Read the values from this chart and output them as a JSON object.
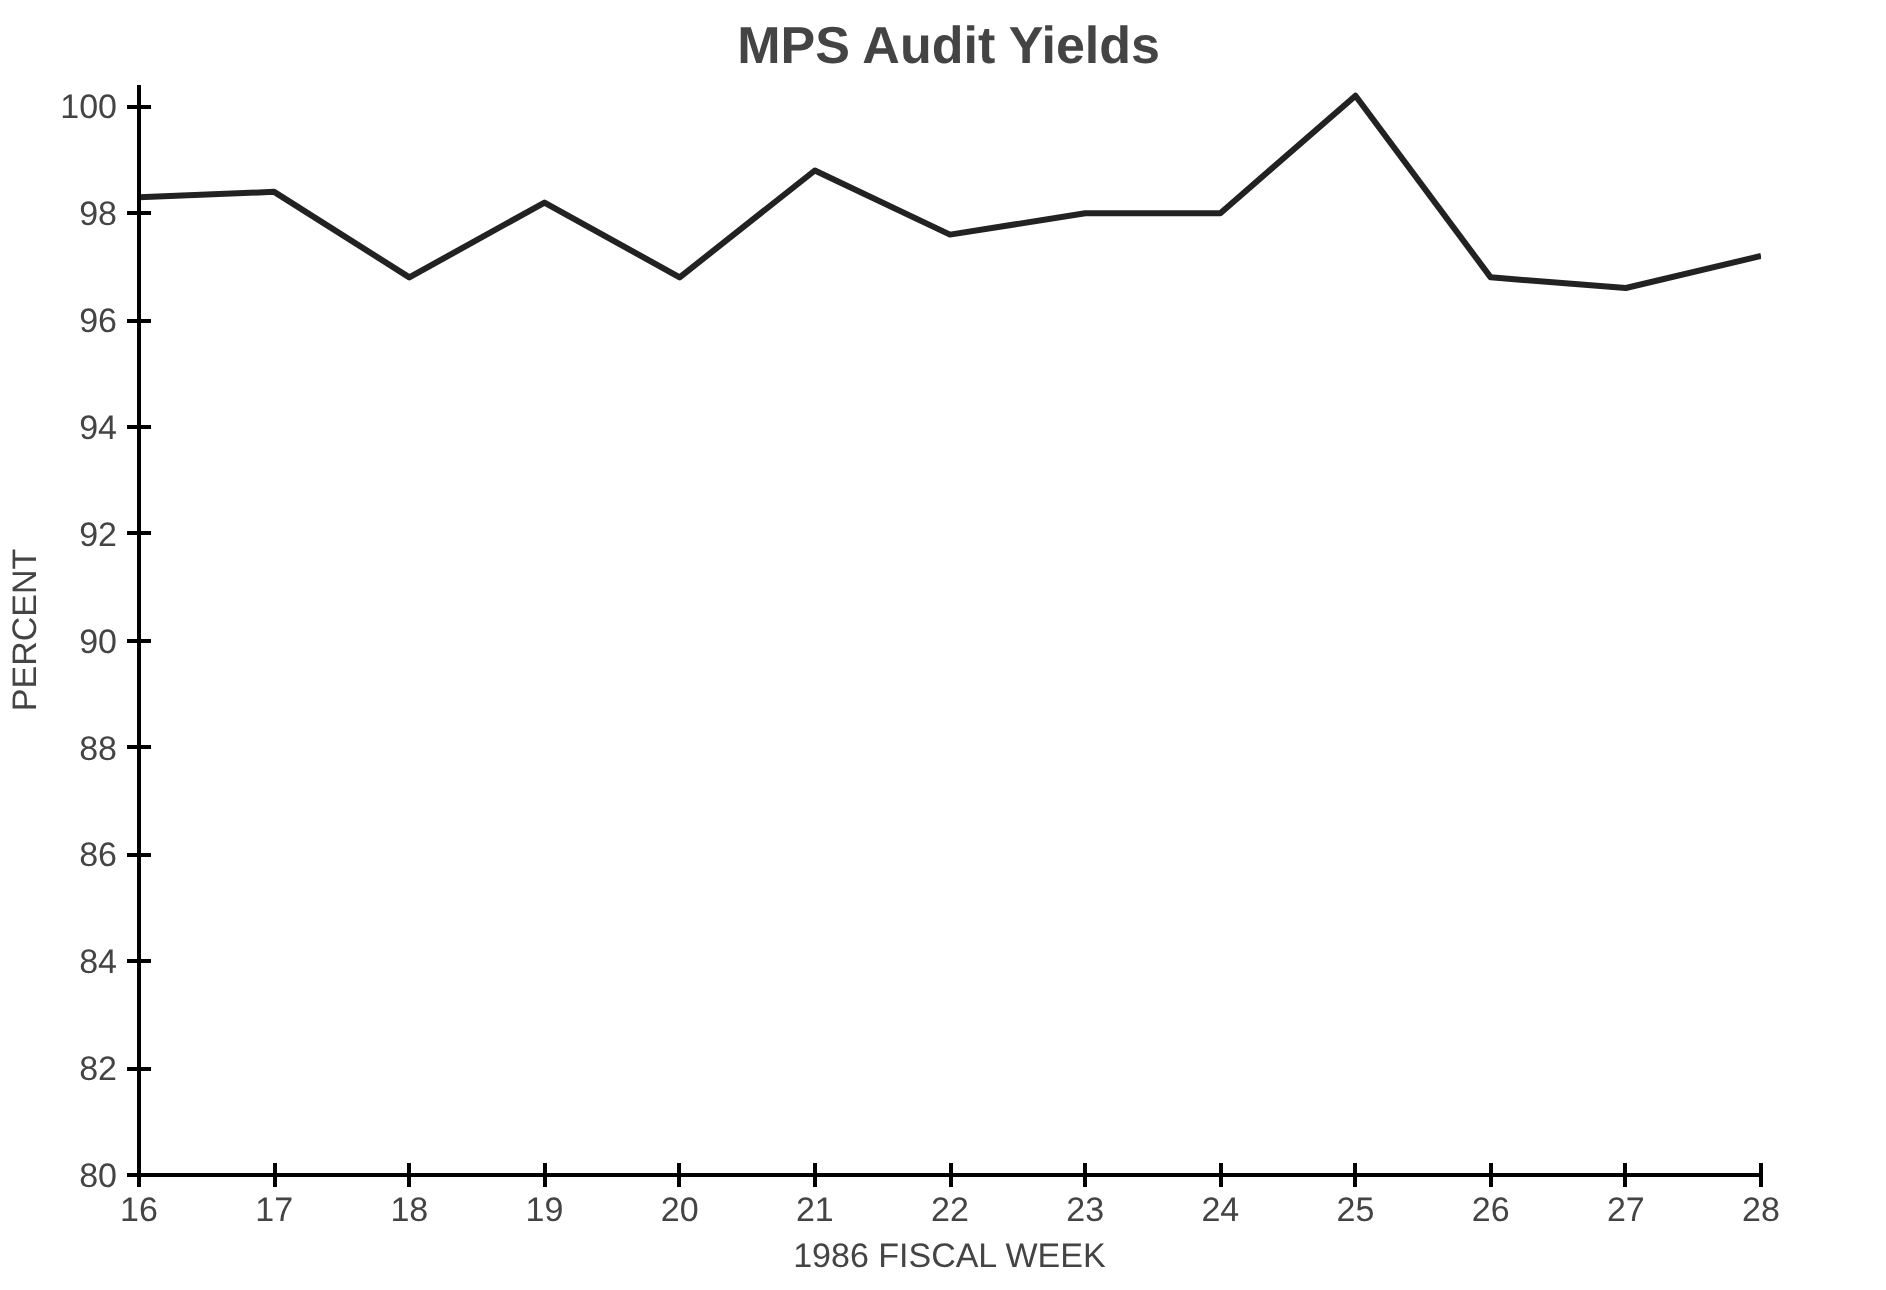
{
  "chart_data": {
    "type": "line",
    "title": "MPS Audit Yields",
    "xlabel": "1986 FISCAL WEEK",
    "ylabel": "PERCENT",
    "x": [
      16,
      17,
      18,
      19,
      20,
      21,
      22,
      23,
      24,
      25,
      26,
      27,
      28
    ],
    "series": [
      {
        "color": "#222222",
        "values": [
          98.3,
          98.4,
          96.8,
          98.2,
          96.8,
          98.8,
          97.6,
          98.0,
          98.0,
          100.2,
          96.8,
          96.6,
          97.2
        ]
      }
    ],
    "xlim": [
      16,
      28
    ],
    "xticks": [
      16,
      17,
      18,
      19,
      20,
      21,
      22,
      23,
      24,
      25,
      26,
      27,
      28
    ],
    "ylim": [
      80,
      100.4
    ],
    "yticks": [
      80,
      82,
      84,
      86,
      88,
      90,
      92,
      94,
      96,
      98,
      100
    ],
    "grid": false,
    "marker": "none",
    "line_style": "solid"
  }
}
